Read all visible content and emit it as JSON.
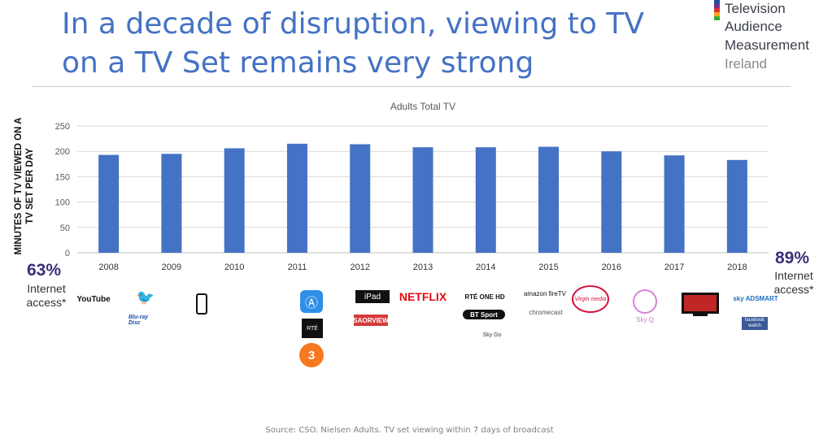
{
  "slide": {
    "title_line1": "In a decade of disruption, viewing to TV",
    "title_line2": "on a TV Set remains very strong",
    "source": "Source: CSO. Nielsen Adults. TV set viewing within 7 days of broadcast"
  },
  "logo": {
    "line1": "Television",
    "line2": "Audience",
    "line3": "Measurement",
    "line4": "Ireland",
    "stripe_colors": [
      "#1f4e9c",
      "#7b2d8e",
      "#d6332f",
      "#f3a21b",
      "#39a935"
    ]
  },
  "internet_access": {
    "start": {
      "percent": "63%",
      "label_line1": "Internet",
      "label_line2": "access*"
    },
    "end": {
      "percent": "89%",
      "label_line1": "Internet",
      "label_line2": "access*"
    }
  },
  "brands": {
    "youtube": "YouTube",
    "bluray": "Blu-ray Disc",
    "ipad": "iPad",
    "saorview": "SAORVIEW",
    "netflix": "NETFLIX",
    "rte_one_hd": "RTÉ ONE HD",
    "bt_sport": "BT Sport",
    "sky_go": "Sky Go",
    "amazon_firetv": "amazon fireTV",
    "chromecast": "chromecast",
    "virgin_media": "Virgin media",
    "sky_q": "Sky Q",
    "sky_adsmart": "sky ADSMART",
    "facebook_watch": "facebook watch",
    "rte_player": "RTÉ",
    "three_player": "3"
  },
  "chart_data": {
    "type": "bar",
    "title": "Adults Total TV",
    "ylabel": "MINUTES OF TV VIEWED ON A TV SET PER DAY",
    "xlabel": "",
    "categories": [
      "2008",
      "2009",
      "2010",
      "2011",
      "2012",
      "2013",
      "2014",
      "2015",
      "2016",
      "2017",
      "2018"
    ],
    "values": [
      193,
      195,
      206,
      215,
      214,
      208,
      208,
      209,
      200,
      192,
      183
    ],
    "ylim": [
      0,
      250
    ],
    "yticks": [
      0,
      50,
      100,
      150,
      200,
      250
    ],
    "grid": true,
    "bar_color": "#4472c4"
  }
}
